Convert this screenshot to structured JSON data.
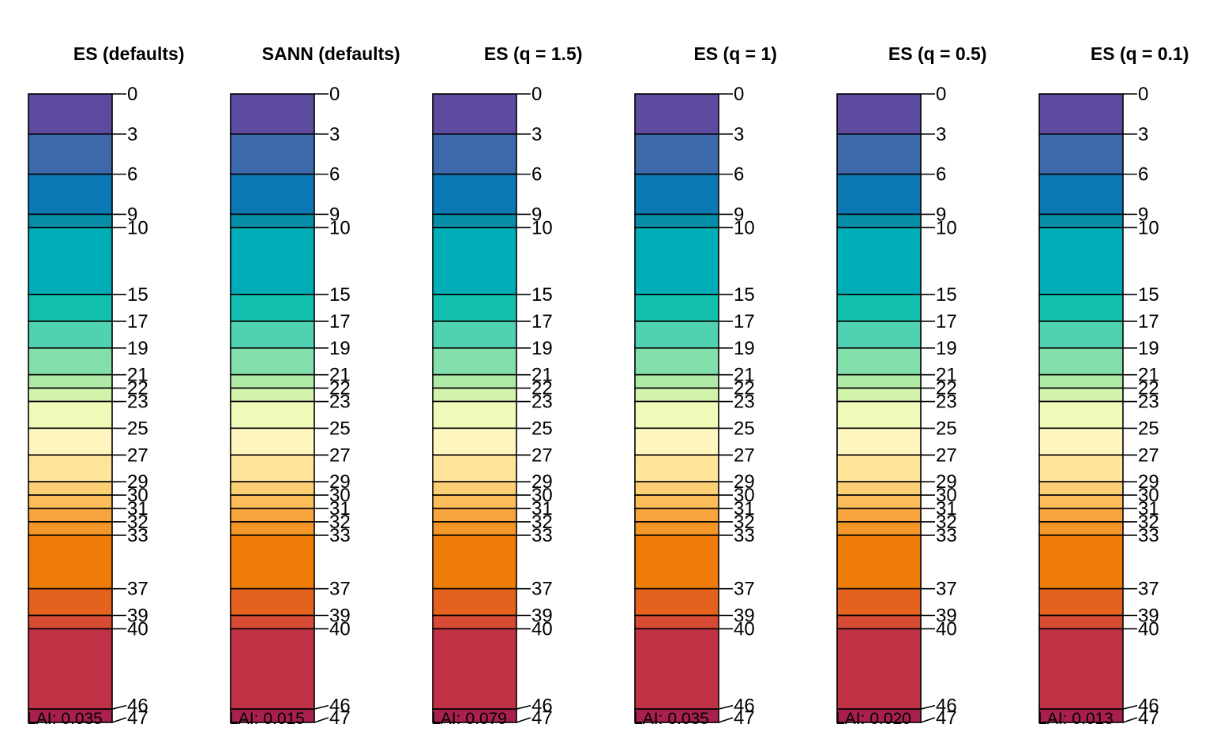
{
  "chart_data": {
    "type": "stacked-column-breaks",
    "ylim": [
      0,
      47
    ],
    "class_boundaries": [
      0,
      3,
      6,
      9,
      10,
      15,
      17,
      19,
      21,
      22,
      23,
      25,
      27,
      29,
      30,
      31,
      32,
      33,
      37,
      39,
      40,
      46,
      47
    ],
    "class_colors": [
      "#5c4b9f",
      "#3d68aa",
      "#0b79b3",
      "#058ea8",
      "#00aeb7",
      "#12bfaf",
      "#50d1b2",
      "#82deaa",
      "#aee9a6",
      "#d3f3ad",
      "#effab8",
      "#fff6bf",
      "#ffe59a",
      "#fdcf74",
      "#fbbd5a",
      "#f7a43d",
      "#f49528",
      "#ee7c07",
      "#e5621e",
      "#d74a34",
      "#c13246",
      "#a8204d"
    ],
    "panels": [
      {
        "title": "ES (defaults)",
        "lai_text": "LAI: 0.035",
        "tick_labels": [
          "0",
          "3",
          "6",
          "9",
          "10",
          "15",
          "17",
          "19",
          "21",
          "22",
          "23",
          "25",
          "27",
          "29",
          "30",
          "31",
          "32",
          "33",
          "37",
          "39",
          "40",
          "46",
          "47"
        ]
      },
      {
        "title": "SANN (defaults)",
        "lai_text": "LAI: 0.015",
        "tick_labels": [
          "0",
          "3",
          "6",
          "9",
          "10",
          "15",
          "17",
          "19",
          "21",
          "22",
          "23",
          "25",
          "27",
          "29",
          "30",
          "31",
          "32",
          "33",
          "37",
          "39",
          "40",
          "46",
          "47"
        ]
      },
      {
        "title": "ES (q = 1.5)",
        "lai_text": "LAI: 0.079",
        "tick_labels": [
          "0",
          "3",
          "6",
          "9",
          "10",
          "15",
          "17",
          "19",
          "21",
          "22",
          "23",
          "25",
          "27",
          "29",
          "30",
          "31",
          "32",
          "33",
          "37",
          "39",
          "40",
          "46",
          "47"
        ]
      },
      {
        "title": "ES (q = 1)",
        "lai_text": "LAI: 0.035",
        "tick_labels": [
          "0",
          "3",
          "6",
          "9",
          "10",
          "15",
          "17",
          "19",
          "21",
          "22",
          "23",
          "25",
          "27",
          "29",
          "30",
          "31",
          "32",
          "33",
          "37",
          "39",
          "40",
          "46",
          "47"
        ]
      },
      {
        "title": "ES (q = 0.5)",
        "lai_text": "LAI: 0.020",
        "tick_labels": [
          "0",
          "3",
          "6",
          "9",
          "10",
          "15",
          "17",
          "19",
          "21",
          "22",
          "23",
          "25",
          "27",
          "29",
          "30",
          "31",
          "32",
          "33",
          "37",
          "39",
          "40",
          "46",
          "47"
        ]
      },
      {
        "title": "ES (q = 0.1)",
        "lai_text": "LAI: 0.013",
        "tick_labels": [
          "0",
          "3",
          "6",
          "9",
          "10",
          "15",
          "17",
          "19",
          "21",
          "22",
          "23",
          "25",
          "27",
          "29",
          "30",
          "31",
          "32",
          "33",
          "37",
          "39",
          "40",
          "46",
          "47"
        ]
      }
    ]
  }
}
